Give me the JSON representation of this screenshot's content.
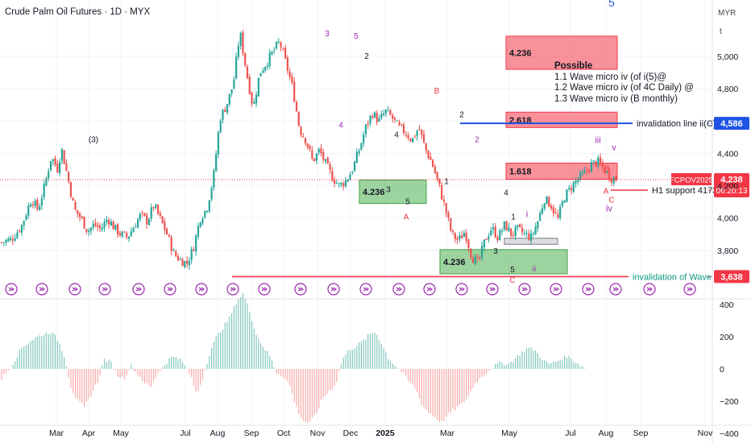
{
  "header": {
    "title": "Crude Palm Oil Futures · 1D · MYX",
    "currency": "MYR",
    "unit": "t"
  },
  "chart_data": {
    "type": "candlestick",
    "ylim": [
      3560,
      5150
    ],
    "price_ticks": [
      4000,
      3800,
      4200,
      4400,
      4800,
      5000
    ],
    "x_labels": [
      "Mar",
      "Apr",
      "May",
      "Jul",
      "Aug",
      "Sep",
      "Oct",
      "Nov",
      "Dec",
      "2025",
      "Mar",
      "May",
      "Jul",
      "Aug",
      "Sep",
      "Nov"
    ],
    "x_labels_bold": [
      "2025"
    ],
    "price_path": [
      [
        0,
        3850
      ],
      [
        6,
        3870
      ],
      [
        12,
        3950
      ],
      [
        18,
        4120
      ],
      [
        22,
        4050
      ],
      [
        26,
        4200
      ],
      [
        30,
        4380
      ],
      [
        34,
        4300
      ],
      [
        36,
        4440
      ],
      [
        40,
        4250
      ],
      [
        44,
        4050
      ],
      [
        48,
        4000
      ],
      [
        52,
        3920
      ],
      [
        56,
        3960
      ],
      [
        60,
        3930
      ],
      [
        64,
        4000
      ],
      [
        68,
        3940
      ],
      [
        72,
        3900
      ],
      [
        76,
        3880
      ],
      [
        80,
        3950
      ],
      [
        84,
        4020
      ],
      [
        88,
        3980
      ],
      [
        92,
        4080
      ],
      [
        96,
        3990
      ],
      [
        100,
        3900
      ],
      [
        104,
        3780
      ],
      [
        108,
        3740
      ],
      [
        112,
        3720
      ],
      [
        116,
        3820
      ],
      [
        120,
        4000
      ],
      [
        124,
        4060
      ],
      [
        128,
        4250
      ],
      [
        132,
        4620
      ],
      [
        136,
        4700
      ],
      [
        140,
        4830
      ],
      [
        144,
        5150
      ],
      [
        148,
        4900
      ],
      [
        152,
        4680
      ],
      [
        156,
        4900
      ],
      [
        160,
        4960
      ],
      [
        164,
        5030
      ],
      [
        168,
        5090
      ],
      [
        172,
        4950
      ],
      [
        176,
        4800
      ],
      [
        180,
        4550
      ],
      [
        184,
        4480
      ],
      [
        188,
        4350
      ],
      [
        192,
        4420
      ],
      [
        196,
        4330
      ],
      [
        200,
        4250
      ],
      [
        204,
        4200
      ],
      [
        208,
        4230
      ],
      [
        212,
        4300
      ],
      [
        216,
        4420
      ],
      [
        220,
        4560
      ],
      [
        224,
        4650
      ],
      [
        228,
        4600
      ],
      [
        232,
        4660
      ],
      [
        236,
        4620
      ],
      [
        240,
        4560
      ],
      [
        244,
        4530
      ],
      [
        248,
        4480
      ],
      [
        252,
        4560
      ],
      [
        256,
        4430
      ],
      [
        260,
        4340
      ],
      [
        264,
        4210
      ],
      [
        268,
        4060
      ],
      [
        272,
        3900
      ],
      [
        276,
        3860
      ],
      [
        280,
        3920
      ],
      [
        284,
        3760
      ],
      [
        288,
        3720
      ],
      [
        292,
        3860
      ],
      [
        296,
        3940
      ],
      [
        300,
        3880
      ],
      [
        304,
        3960
      ],
      [
        308,
        3900
      ],
      [
        312,
        3930
      ],
      [
        316,
        3900
      ],
      [
        320,
        3880
      ],
      [
        324,
        3980
      ],
      [
        328,
        4120
      ],
      [
        332,
        4080
      ],
      [
        336,
        3990
      ],
      [
        340,
        4130
      ],
      [
        344,
        4190
      ],
      [
        348,
        4240
      ],
      [
        352,
        4270
      ],
      [
        356,
        4330
      ],
      [
        360,
        4350
      ],
      [
        364,
        4300
      ],
      [
        368,
        4250
      ],
      [
        372,
        4240
      ]
    ],
    "oscillator": {
      "ylim": [
        -420,
        480
      ],
      "ticks": [
        -400,
        -200,
        0,
        200,
        400
      ],
      "path": [
        [
          0,
          -60
        ],
        [
          6,
          20
        ],
        [
          12,
          130
        ],
        [
          18,
          180
        ],
        [
          24,
          210
        ],
        [
          30,
          230
        ],
        [
          34,
          180
        ],
        [
          38,
          80
        ],
        [
          42,
          -120
        ],
        [
          46,
          -200
        ],
        [
          50,
          -240
        ],
        [
          54,
          -160
        ],
        [
          58,
          -80
        ],
        [
          62,
          60
        ],
        [
          66,
          40
        ],
        [
          70,
          -40
        ],
        [
          74,
          -60
        ],
        [
          78,
          20
        ],
        [
          82,
          -30
        ],
        [
          86,
          -80
        ],
        [
          90,
          -120
        ],
        [
          94,
          -30
        ],
        [
          98,
          20
        ],
        [
          102,
          70
        ],
        [
          106,
          80
        ],
        [
          110,
          30
        ],
        [
          114,
          -40
        ],
        [
          118,
          -160
        ],
        [
          122,
          -40
        ],
        [
          126,
          110
        ],
        [
          130,
          200
        ],
        [
          134,
          260
        ],
        [
          138,
          320
        ],
        [
          142,
          420
        ],
        [
          146,
          470
        ],
        [
          150,
          350
        ],
        [
          154,
          210
        ],
        [
          158,
          140
        ],
        [
          162,
          80
        ],
        [
          166,
          -20
        ],
        [
          170,
          -40
        ],
        [
          174,
          -100
        ],
        [
          178,
          -240
        ],
        [
          182,
          -320
        ],
        [
          186,
          -340
        ],
        [
          190,
          -280
        ],
        [
          194,
          -180
        ],
        [
          198,
          -140
        ],
        [
          202,
          -90
        ],
        [
          206,
          60
        ],
        [
          210,
          120
        ],
        [
          214,
          140
        ],
        [
          218,
          170
        ],
        [
          222,
          210
        ],
        [
          226,
          230
        ],
        [
          230,
          150
        ],
        [
          234,
          60
        ],
        [
          238,
          20
        ],
        [
          242,
          -20
        ],
        [
          246,
          -80
        ],
        [
          250,
          -120
        ],
        [
          254,
          -220
        ],
        [
          258,
          -270
        ],
        [
          262,
          -300
        ],
        [
          266,
          -330
        ],
        [
          270,
          -280
        ],
        [
          274,
          -250
        ],
        [
          278,
          -220
        ],
        [
          282,
          -170
        ],
        [
          286,
          -90
        ],
        [
          290,
          -50
        ],
        [
          294,
          -10
        ],
        [
          298,
          20
        ],
        [
          302,
          40
        ],
        [
          306,
          30
        ],
        [
          310,
          60
        ],
        [
          314,
          100
        ],
        [
          318,
          130
        ],
        [
          322,
          120
        ],
        [
          326,
          70
        ],
        [
          330,
          30
        ],
        [
          334,
          40
        ],
        [
          338,
          60
        ],
        [
          342,
          80
        ],
        [
          346,
          50
        ],
        [
          350,
          20
        ],
        [
          354,
          0
        ]
      ],
      "bar_color_up": "#26a69a",
      "bar_color_down": "#ef5350"
    },
    "lines": [
      {
        "label": "invalidation line ii(C)",
        "value": 4586,
        "badge": "4,586",
        "color": "#1e53e5"
      },
      {
        "label": "H1 support 4173",
        "value": 4173,
        "badge": "4,173",
        "color": "#f23645"
      },
      {
        "label": "invalidation of Wave 2",
        "value": 3638,
        "badge": "3,638",
        "color": "#f23645"
      }
    ],
    "fib_zones": [
      {
        "label": "4.236",
        "low": 4920,
        "high": 5125,
        "color": "red"
      },
      {
        "label": "2.618",
        "low": 4560,
        "high": 4655,
        "color": "red"
      },
      {
        "label": "1.618",
        "low": 4240,
        "high": 4340,
        "color": "red"
      },
      {
        "label": "4.236",
        "low": 4090,
        "high": 4235,
        "color": "green"
      },
      {
        "label": "4.236",
        "low": 3655,
        "high": 3805,
        "color": "green"
      }
    ],
    "current_price": {
      "symbol": "FCPOV2025",
      "price": "4,238",
      "countdown": "06:20:13",
      "color": "#f23645"
    },
    "wave_labels": [
      {
        "text": "5",
        "color": "#1e53e5"
      },
      {
        "text": "(3)",
        "color": "#131722"
      },
      {
        "text": "3",
        "color": "#9c27b0"
      },
      {
        "text": "5",
        "color": "#9c27b0"
      },
      {
        "text": "2",
        "color": "#131722"
      },
      {
        "text": "4",
        "color": "#9c27b0"
      },
      {
        "text": "4",
        "color": "#131722"
      },
      {
        "text": "B",
        "color": "#f23645"
      },
      {
        "text": "2",
        "color": "#131722"
      },
      {
        "text": "1",
        "color": "#131722"
      },
      {
        "text": "3",
        "color": "#131722"
      },
      {
        "text": "5",
        "color": "#131722"
      },
      {
        "text": "A",
        "color": "#f23645"
      },
      {
        "text": "4",
        "color": "#131722"
      },
      {
        "text": "2",
        "color": "#9c27b0"
      },
      {
        "text": "1",
        "color": "#131722"
      },
      {
        "text": "3",
        "color": "#131722"
      },
      {
        "text": "5",
        "color": "#131722"
      },
      {
        "text": "C",
        "color": "#f23645"
      },
      {
        "text": "ii",
        "color": "#9c27b0"
      },
      {
        "text": "i",
        "color": "#9c27b0"
      },
      {
        "text": "iii",
        "color": "#9c27b0"
      },
      {
        "text": "v",
        "color": "#9c27b0"
      },
      {
        "text": "iv",
        "color": "#9c27b0"
      },
      {
        "text": "B",
        "color": "#f23645"
      },
      {
        "text": "A",
        "color": "#f23645"
      },
      {
        "text": "C",
        "color": "#f23645"
      }
    ]
  },
  "note": {
    "title": "Possible",
    "lines": [
      "1.1 Wave micro iv (of i(5)@",
      "1.2 Wave micro iv (of 4C Daily) @",
      "1.3 Wave micro iv (B monthly)"
    ]
  },
  "colors": {
    "candle_up": "#26a69a",
    "candle_down": "#ef5350",
    "grid": "#f0f3fa",
    "text": "#131722",
    "event_icon": "#9c27b0"
  }
}
